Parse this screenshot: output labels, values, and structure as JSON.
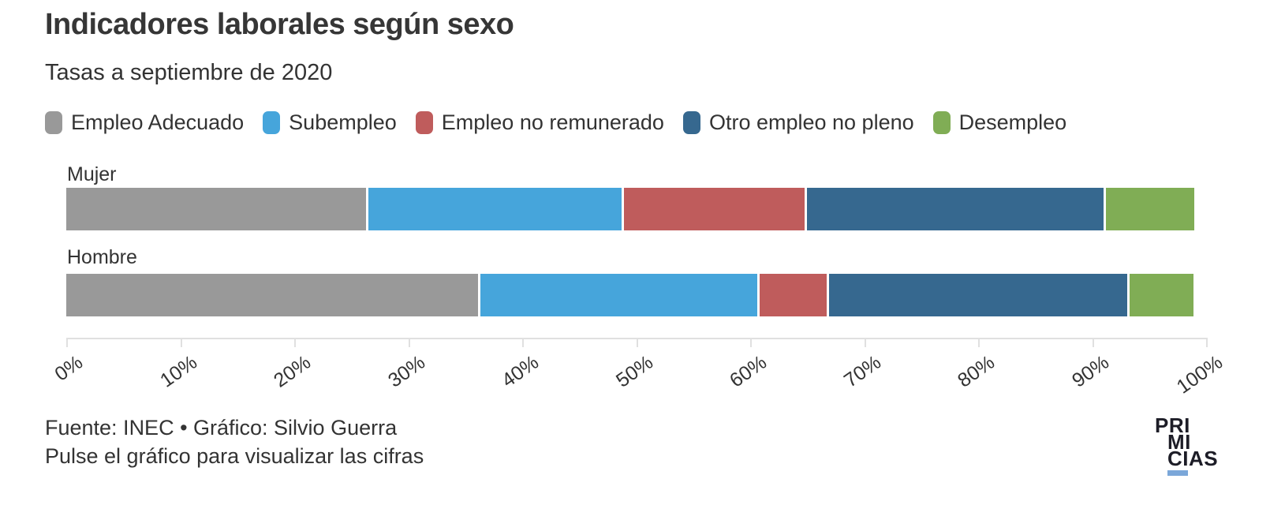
{
  "header": {
    "title": "Indicadores laborales según sexo",
    "subtitle": "Tasas a septiembre de 2020"
  },
  "chart_data": {
    "type": "bar",
    "stacked": true,
    "orientation": "horizontal",
    "categories": [
      "Mujer",
      "Hombre"
    ],
    "series": [
      {
        "name": "Empleo Adecuado",
        "color": "#999999",
        "values": [
          26.4,
          36.2
        ]
      },
      {
        "name": "Subempleo",
        "color": "#46a5db",
        "values": [
          22.4,
          24.5
        ]
      },
      {
        "name": "Empleo no remunerado",
        "color": "#bf5c5c",
        "values": [
          16.1,
          6.1
        ]
      },
      {
        "name": "Otro empleo no pleno",
        "color": "#36688f",
        "values": [
          26.2,
          26.4
        ]
      },
      {
        "name": "Desempleo",
        "color": "#80ad55",
        "values": [
          8.0,
          5.8
        ]
      }
    ],
    "x_ticks": [
      "0%",
      "10%",
      "20%",
      "30%",
      "40%",
      "50%",
      "60%",
      "70%",
      "80%",
      "90%",
      "100%"
    ],
    "xlim": [
      0,
      100
    ],
    "grid": false,
    "legend_position": "top",
    "note": "Pulse el gráfico para visualizar las cifras"
  },
  "footer": {
    "source": "Fuente: INEC • Gráfico: Silvio Guerra",
    "note": "Pulse el gráfico para visualizar las cifras"
  },
  "logo": {
    "lines": [
      "PRI",
      "MI",
      "CIAS"
    ],
    "text_color": "#1d1d27",
    "underline_color": "#7ba7d9"
  }
}
